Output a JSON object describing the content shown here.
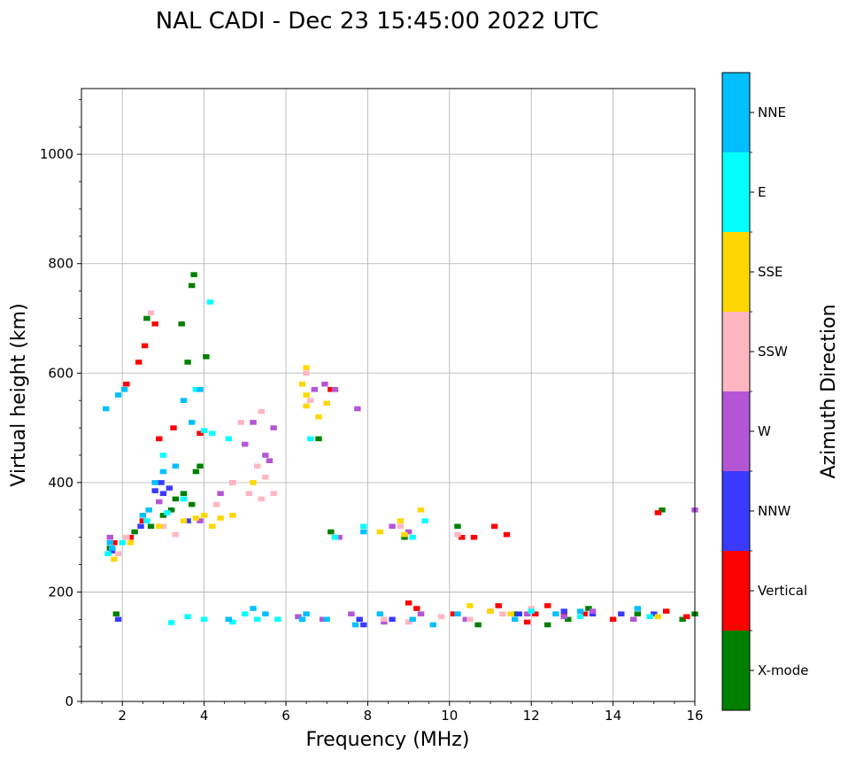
{
  "chart_data": {
    "type": "scatter",
    "title": "NAL CADI - Dec 23 15:45:00 2022 UTC",
    "xlabel": "Frequency (MHz)",
    "ylabel": "Virtual height (km)",
    "xlim": [
      1,
      16
    ],
    "ylim": [
      0,
      1120
    ],
    "xticks": [
      2,
      4,
      6,
      8,
      10,
      12,
      14,
      16
    ],
    "yticks": [
      0,
      200,
      400,
      600,
      800,
      1000
    ],
    "grid": true,
    "colorbar": {
      "label": "Azimuth Direction",
      "categories": [
        {
          "name": "X-mode",
          "color": "#008000"
        },
        {
          "name": "Vertical",
          "color": "#ff0000"
        },
        {
          "name": "NNW",
          "color": "#3a3aff"
        },
        {
          "name": "W",
          "color": "#b455d6"
        },
        {
          "name": "SSW",
          "color": "#ffb6c1"
        },
        {
          "name": "SSE",
          "color": "#ffd700"
        },
        {
          "name": "E",
          "color": "#00ffff"
        },
        {
          "name": "NNE",
          "color": "#00bfff"
        }
      ]
    },
    "series": [
      {
        "name": "X-mode",
        "points": [
          [
            1.85,
            160
          ],
          [
            2.6,
            700
          ],
          [
            3.45,
            690
          ],
          [
            3.7,
            760
          ],
          [
            3.75,
            780
          ],
          [
            3.6,
            620
          ],
          [
            3.9,
            430
          ],
          [
            3.8,
            420
          ],
          [
            4.05,
            630
          ],
          [
            3.5,
            380
          ],
          [
            3.2,
            350
          ],
          [
            3.0,
            340
          ],
          [
            2.7,
            320
          ],
          [
            2.3,
            310
          ],
          [
            1.7,
            280
          ],
          [
            10.2,
            320
          ],
          [
            10.7,
            140
          ],
          [
            11.6,
            160
          ],
          [
            12.4,
            140
          ],
          [
            12.9,
            150
          ],
          [
            13.4,
            170
          ],
          [
            14.6,
            160
          ],
          [
            15.2,
            350
          ],
          [
            15.7,
            150
          ],
          [
            16.0,
            160
          ],
          [
            8.9,
            300
          ],
          [
            7.1,
            310
          ],
          [
            6.8,
            480
          ],
          [
            3.7,
            360
          ],
          [
            3.3,
            370
          ]
        ]
      },
      {
        "name": "Vertical",
        "points": [
          [
            2.1,
            580
          ],
          [
            2.4,
            620
          ],
          [
            2.55,
            650
          ],
          [
            2.8,
            690
          ],
          [
            3.25,
            500
          ],
          [
            2.9,
            480
          ],
          [
            3.9,
            490
          ],
          [
            2.5,
            330
          ],
          [
            2.2,
            300
          ],
          [
            1.8,
            290
          ],
          [
            10.3,
            300
          ],
          [
            10.6,
            300
          ],
          [
            11.1,
            320
          ],
          [
            11.4,
            305
          ],
          [
            11.2,
            175
          ],
          [
            12.1,
            160
          ],
          [
            12.4,
            175
          ],
          [
            13.3,
            160
          ],
          [
            14.0,
            150
          ],
          [
            15.3,
            165
          ],
          [
            15.8,
            155
          ],
          [
            15.1,
            345
          ],
          [
            7.1,
            570
          ],
          [
            9.0,
            180
          ],
          [
            9.2,
            170
          ],
          [
            10.1,
            160
          ],
          [
            11.9,
            145
          ],
          [
            12.8,
            160
          ]
        ]
      },
      {
        "name": "NNW",
        "points": [
          [
            1.9,
            150
          ],
          [
            3.0,
            380
          ],
          [
            2.8,
            385
          ],
          [
            3.15,
            390
          ],
          [
            2.95,
            400
          ],
          [
            1.75,
            275
          ],
          [
            2.45,
            320
          ],
          [
            7.8,
            150
          ],
          [
            7.9,
            140
          ],
          [
            8.6,
            150
          ],
          [
            13.5,
            160
          ],
          [
            14.2,
            160
          ],
          [
            15.0,
            160
          ],
          [
            11.7,
            160
          ],
          [
            12.8,
            165
          ],
          [
            3.6,
            330
          ]
        ]
      },
      {
        "name": "W",
        "points": [
          [
            1.7,
            300
          ],
          [
            2.9,
            365
          ],
          [
            4.4,
            380
          ],
          [
            5.0,
            470
          ],
          [
            5.2,
            510
          ],
          [
            5.5,
            450
          ],
          [
            5.7,
            500
          ],
          [
            5.6,
            440
          ],
          [
            6.7,
            570
          ],
          [
            6.95,
            580
          ],
          [
            7.2,
            570
          ],
          [
            7.75,
            535
          ],
          [
            7.3,
            300
          ],
          [
            8.6,
            320
          ],
          [
            9.0,
            310
          ],
          [
            8.4,
            145
          ],
          [
            9.3,
            160
          ],
          [
            10.4,
            150
          ],
          [
            11.0,
            165
          ],
          [
            11.9,
            160
          ],
          [
            12.8,
            155
          ],
          [
            13.5,
            165
          ],
          [
            14.5,
            150
          ],
          [
            16.0,
            350
          ],
          [
            6.9,
            150
          ],
          [
            7.6,
            160
          ],
          [
            6.3,
            155
          ],
          [
            4.7,
            400
          ],
          [
            3.9,
            330
          ]
        ]
      },
      {
        "name": "SSW",
        "points": [
          [
            1.9,
            270
          ],
          [
            2.1,
            300
          ],
          [
            2.6,
            330
          ],
          [
            3.0,
            320
          ],
          [
            3.3,
            305
          ],
          [
            4.3,
            360
          ],
          [
            4.7,
            400
          ],
          [
            5.1,
            380
          ],
          [
            5.4,
            370
          ],
          [
            5.7,
            380
          ],
          [
            5.5,
            410
          ],
          [
            5.3,
            430
          ],
          [
            4.9,
            510
          ],
          [
            5.4,
            530
          ],
          [
            6.5,
            600
          ],
          [
            6.6,
            550
          ],
          [
            8.4,
            150
          ],
          [
            9.0,
            145
          ],
          [
            9.8,
            155
          ],
          [
            10.5,
            150
          ],
          [
            11.3,
            160
          ],
          [
            12.0,
            170
          ],
          [
            2.7,
            710
          ],
          [
            8.8,
            320
          ],
          [
            10.2,
            305
          ]
        ]
      },
      {
        "name": "SSE",
        "points": [
          [
            1.8,
            260
          ],
          [
            2.2,
            290
          ],
          [
            2.9,
            320
          ],
          [
            3.5,
            330
          ],
          [
            3.8,
            335
          ],
          [
            4.0,
            340
          ],
          [
            4.2,
            320
          ],
          [
            4.4,
            335
          ],
          [
            4.7,
            340
          ],
          [
            5.2,
            400
          ],
          [
            6.4,
            580
          ],
          [
            6.5,
            610
          ],
          [
            6.5,
            560
          ],
          [
            6.5,
            540
          ],
          [
            6.8,
            520
          ],
          [
            7.0,
            545
          ],
          [
            8.3,
            310
          ],
          [
            8.8,
            330
          ],
          [
            9.3,
            350
          ],
          [
            10.5,
            175
          ],
          [
            11.0,
            165
          ],
          [
            11.5,
            160
          ],
          [
            15.1,
            155
          ],
          [
            7.2,
            300
          ],
          [
            8.9,
            305
          ]
        ]
      },
      {
        "name": "E",
        "points": [
          [
            1.65,
            270
          ],
          [
            2.0,
            290
          ],
          [
            2.6,
            330
          ],
          [
            3.1,
            345
          ],
          [
            3.5,
            370
          ],
          [
            4.0,
            495
          ],
          [
            4.2,
            490
          ],
          [
            4.15,
            730
          ],
          [
            3.2,
            144
          ],
          [
            3.6,
            155
          ],
          [
            4.0,
            150
          ],
          [
            4.7,
            145
          ],
          [
            5.0,
            160
          ],
          [
            5.3,
            150
          ],
          [
            5.8,
            150
          ],
          [
            6.4,
            150
          ],
          [
            7.2,
            300
          ],
          [
            7.9,
            320
          ],
          [
            9.1,
            300
          ],
          [
            9.4,
            330
          ],
          [
            12.0,
            165
          ],
          [
            13.2,
            155
          ],
          [
            14.9,
            155
          ],
          [
            6.6,
            480
          ],
          [
            4.6,
            480
          ],
          [
            3.8,
            570
          ],
          [
            3.0,
            450
          ]
        ]
      },
      {
        "name": "NNE",
        "points": [
          [
            1.75,
            280
          ],
          [
            1.6,
            535
          ],
          [
            1.9,
            560
          ],
          [
            2.05,
            570
          ],
          [
            2.65,
            350
          ],
          [
            3.0,
            420
          ],
          [
            3.3,
            430
          ],
          [
            3.5,
            550
          ],
          [
            2.5,
            340
          ],
          [
            3.7,
            510
          ],
          [
            3.9,
            570
          ],
          [
            4.6,
            150
          ],
          [
            5.2,
            170
          ],
          [
            5.5,
            160
          ],
          [
            6.5,
            160
          ],
          [
            7.0,
            150
          ],
          [
            7.7,
            140
          ],
          [
            8.3,
            160
          ],
          [
            9.1,
            150
          ],
          [
            9.6,
            140
          ],
          [
            10.2,
            160
          ],
          [
            11.6,
            150
          ],
          [
            12.6,
            160
          ],
          [
            13.2,
            165
          ],
          [
            14.6,
            170
          ],
          [
            7.9,
            310
          ],
          [
            6.4,
            150
          ],
          [
            2.8,
            400
          ],
          [
            1.7,
            290
          ]
        ]
      }
    ]
  }
}
